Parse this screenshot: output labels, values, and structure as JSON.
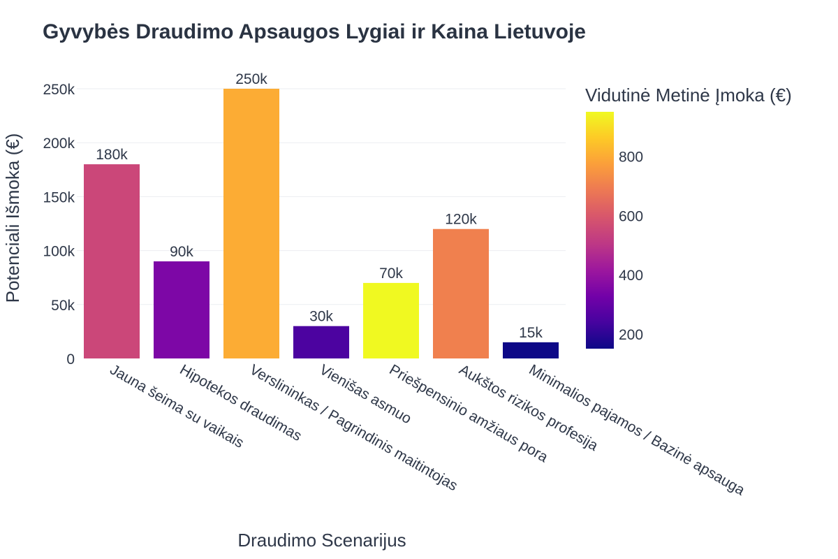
{
  "chart_data": {
    "type": "bar",
    "title": "Gyvybės Draudimo Apsaugos Lygiai ir Kaina Lietuvoje",
    "xlabel": "Draudimo Scenarijus",
    "ylabel": "Potenciali Išmoka (€)",
    "ylim": [
      0,
      250000
    ],
    "yticks": [
      0,
      50000,
      100000,
      150000,
      200000,
      250000
    ],
    "ytick_labels": [
      "0",
      "50k",
      "100k",
      "150k",
      "200k",
      "250k"
    ],
    "grid": true,
    "categories": [
      "Jauna šeima su vaikais",
      "Hipotekos draudimas",
      "Verslininkas / Pagrindinis maitintojas",
      "Vienišas asmuo",
      "Priešpensinio amžiaus pora",
      "Aukštos rizikos profesija",
      "Minimalios pajamos / Bazinė apsauga"
    ],
    "values": [
      180000,
      90000,
      250000,
      30000,
      70000,
      120000,
      15000
    ],
    "data_labels": [
      "180k",
      "90k",
      "250k",
      "30k",
      "70k",
      "120k",
      "15k"
    ],
    "color_values": [
      550,
      350,
      800,
      250,
      950,
      700,
      150
    ],
    "colorbar": {
      "title": "Vidutinė Metinė Įmoka (€)",
      "range": [
        150,
        950
      ],
      "ticks": [
        200,
        400,
        600,
        800
      ],
      "tick_labels": [
        "200",
        "400",
        "600",
        "800"
      ],
      "colorscale": "plasma"
    }
  }
}
